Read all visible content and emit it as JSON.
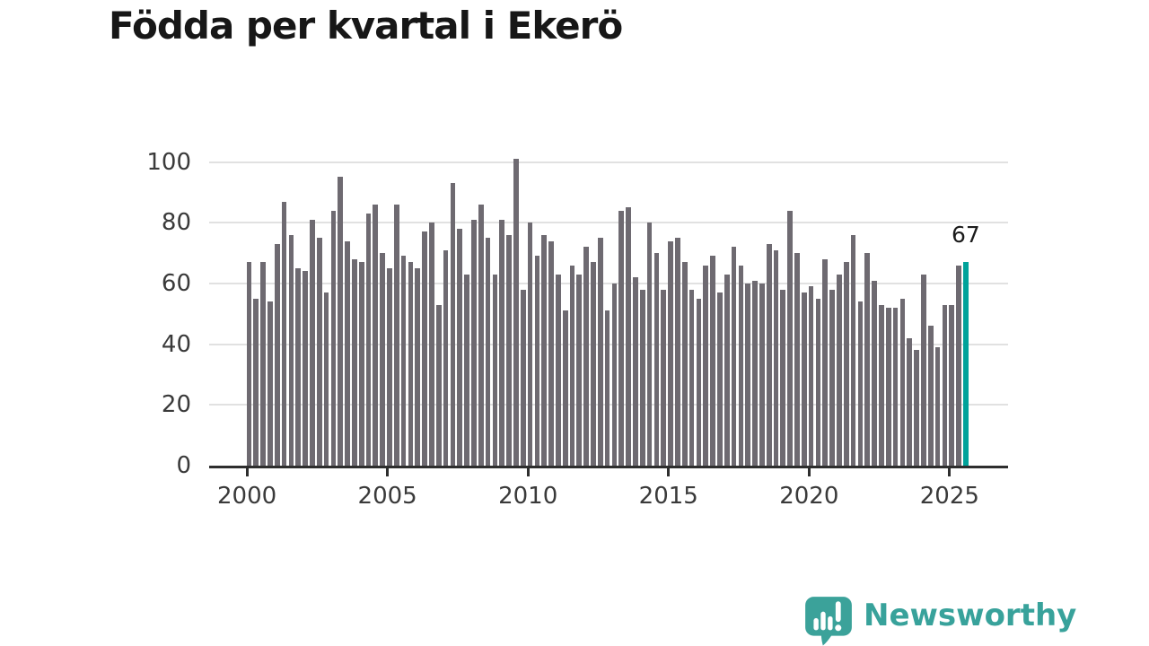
{
  "title": "Födda per kvartal i Ekerö",
  "annotation": {
    "label": "67"
  },
  "branding": {
    "logo_text": "Newsworthy",
    "logo_icon": "bar-chart-speech-bubble-icon"
  },
  "colors": {
    "bar_gray": "#6e6a71",
    "bar_highlight_teal": "#00a29a",
    "gridline": "#e1e1e1",
    "axis": "#2e2e2e",
    "tick_label": "#3a3a3a",
    "title_text": "#171717",
    "annotation_text": "#1b1b1b",
    "logo_teal": "#38a29b",
    "background": "#ffffff"
  },
  "chart_data": {
    "type": "bar",
    "title": "Födda per kvartal i Ekerö",
    "x_unit": "quarter",
    "x_start": "2000 Q1",
    "x_end": "2025 Q3",
    "values": [
      67,
      55,
      67,
      54,
      73,
      87,
      76,
      65,
      64,
      81,
      75,
      57,
      84,
      95,
      74,
      68,
      67,
      83,
      86,
      70,
      65,
      86,
      69,
      67,
      65,
      77,
      80,
      53,
      71,
      93,
      78,
      63,
      81,
      86,
      75,
      63,
      81,
      76,
      101,
      58,
      80,
      69,
      76,
      74,
      63,
      51,
      66,
      63,
      72,
      67,
      75,
      51,
      60,
      84,
      85,
      62,
      58,
      80,
      70,
      58,
      74,
      75,
      67,
      58,
      55,
      66,
      69,
      57,
      63,
      72,
      66,
      60,
      61,
      60,
      73,
      71,
      58,
      84,
      70,
      57,
      59,
      55,
      68,
      58,
      63,
      67,
      76,
      54,
      70,
      61,
      53,
      52,
      52,
      55,
      42,
      38,
      63,
      46,
      39,
      53,
      53,
      66,
      67
    ],
    "highlight": {
      "index": 102,
      "value": 67,
      "label": "67"
    },
    "yticks": [
      0,
      20,
      40,
      60,
      80,
      100
    ],
    "xticks": [
      2000,
      2005,
      2010,
      2015,
      2020,
      2025
    ],
    "ylim": [
      0,
      105
    ],
    "grid": true,
    "legend": false,
    "xlabel": "",
    "ylabel": ""
  }
}
